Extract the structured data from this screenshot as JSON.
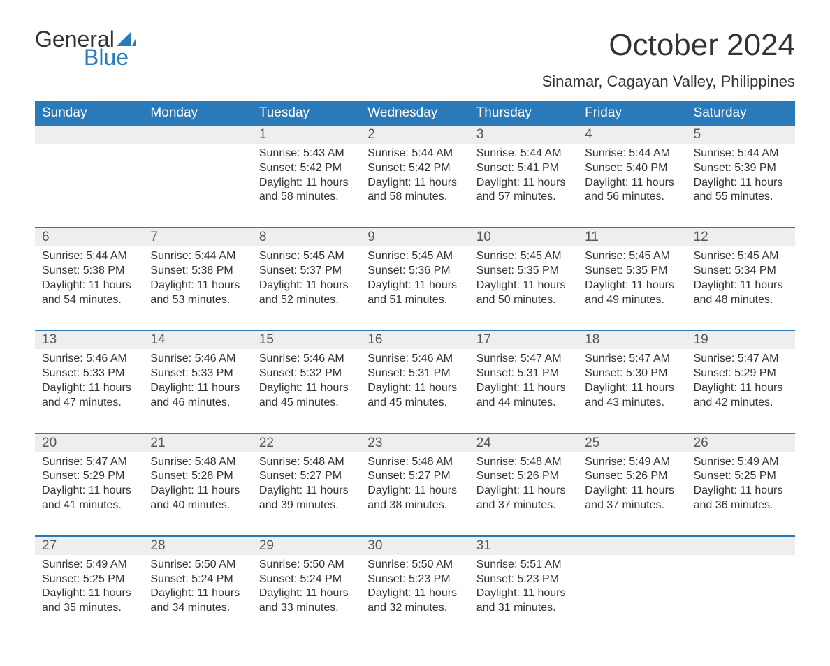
{
  "logo": {
    "word1": "General",
    "word2": "Blue",
    "accent_color": "#2a7ab9",
    "text_color": "#333333"
  },
  "title": "October 2024",
  "location": "Sinamar, Cagayan Valley, Philippines",
  "colors": {
    "header_bg": "#2a7ab9",
    "header_text": "#ffffff",
    "daynum_bg": "#eeeeee",
    "daynum_text": "#555555",
    "body_text": "#333333",
    "week_divider": "#2a7ab9",
    "page_bg": "#ffffff"
  },
  "typography": {
    "title_fontsize": 44,
    "location_fontsize": 22,
    "weekday_fontsize": 19,
    "daynum_fontsize": 19,
    "body_fontsize": 16,
    "font_family": "Arial"
  },
  "weekdays": [
    "Sunday",
    "Monday",
    "Tuesday",
    "Wednesday",
    "Thursday",
    "Friday",
    "Saturday"
  ],
  "weeks": [
    [
      null,
      null,
      {
        "n": "1",
        "sr": "Sunrise: 5:43 AM",
        "ss": "Sunset: 5:42 PM",
        "d1": "Daylight: 11 hours",
        "d2": "and 58 minutes."
      },
      {
        "n": "2",
        "sr": "Sunrise: 5:44 AM",
        "ss": "Sunset: 5:42 PM",
        "d1": "Daylight: 11 hours",
        "d2": "and 58 minutes."
      },
      {
        "n": "3",
        "sr": "Sunrise: 5:44 AM",
        "ss": "Sunset: 5:41 PM",
        "d1": "Daylight: 11 hours",
        "d2": "and 57 minutes."
      },
      {
        "n": "4",
        "sr": "Sunrise: 5:44 AM",
        "ss": "Sunset: 5:40 PM",
        "d1": "Daylight: 11 hours",
        "d2": "and 56 minutes."
      },
      {
        "n": "5",
        "sr": "Sunrise: 5:44 AM",
        "ss": "Sunset: 5:39 PM",
        "d1": "Daylight: 11 hours",
        "d2": "and 55 minutes."
      }
    ],
    [
      {
        "n": "6",
        "sr": "Sunrise: 5:44 AM",
        "ss": "Sunset: 5:38 PM",
        "d1": "Daylight: 11 hours",
        "d2": "and 54 minutes."
      },
      {
        "n": "7",
        "sr": "Sunrise: 5:44 AM",
        "ss": "Sunset: 5:38 PM",
        "d1": "Daylight: 11 hours",
        "d2": "and 53 minutes."
      },
      {
        "n": "8",
        "sr": "Sunrise: 5:45 AM",
        "ss": "Sunset: 5:37 PM",
        "d1": "Daylight: 11 hours",
        "d2": "and 52 minutes."
      },
      {
        "n": "9",
        "sr": "Sunrise: 5:45 AM",
        "ss": "Sunset: 5:36 PM",
        "d1": "Daylight: 11 hours",
        "d2": "and 51 minutes."
      },
      {
        "n": "10",
        "sr": "Sunrise: 5:45 AM",
        "ss": "Sunset: 5:35 PM",
        "d1": "Daylight: 11 hours",
        "d2": "and 50 minutes."
      },
      {
        "n": "11",
        "sr": "Sunrise: 5:45 AM",
        "ss": "Sunset: 5:35 PM",
        "d1": "Daylight: 11 hours",
        "d2": "and 49 minutes."
      },
      {
        "n": "12",
        "sr": "Sunrise: 5:45 AM",
        "ss": "Sunset: 5:34 PM",
        "d1": "Daylight: 11 hours",
        "d2": "and 48 minutes."
      }
    ],
    [
      {
        "n": "13",
        "sr": "Sunrise: 5:46 AM",
        "ss": "Sunset: 5:33 PM",
        "d1": "Daylight: 11 hours",
        "d2": "and 47 minutes."
      },
      {
        "n": "14",
        "sr": "Sunrise: 5:46 AM",
        "ss": "Sunset: 5:33 PM",
        "d1": "Daylight: 11 hours",
        "d2": "and 46 minutes."
      },
      {
        "n": "15",
        "sr": "Sunrise: 5:46 AM",
        "ss": "Sunset: 5:32 PM",
        "d1": "Daylight: 11 hours",
        "d2": "and 45 minutes."
      },
      {
        "n": "16",
        "sr": "Sunrise: 5:46 AM",
        "ss": "Sunset: 5:31 PM",
        "d1": "Daylight: 11 hours",
        "d2": "and 45 minutes."
      },
      {
        "n": "17",
        "sr": "Sunrise: 5:47 AM",
        "ss": "Sunset: 5:31 PM",
        "d1": "Daylight: 11 hours",
        "d2": "and 44 minutes."
      },
      {
        "n": "18",
        "sr": "Sunrise: 5:47 AM",
        "ss": "Sunset: 5:30 PM",
        "d1": "Daylight: 11 hours",
        "d2": "and 43 minutes."
      },
      {
        "n": "19",
        "sr": "Sunrise: 5:47 AM",
        "ss": "Sunset: 5:29 PM",
        "d1": "Daylight: 11 hours",
        "d2": "and 42 minutes."
      }
    ],
    [
      {
        "n": "20",
        "sr": "Sunrise: 5:47 AM",
        "ss": "Sunset: 5:29 PM",
        "d1": "Daylight: 11 hours",
        "d2": "and 41 minutes."
      },
      {
        "n": "21",
        "sr": "Sunrise: 5:48 AM",
        "ss": "Sunset: 5:28 PM",
        "d1": "Daylight: 11 hours",
        "d2": "and 40 minutes."
      },
      {
        "n": "22",
        "sr": "Sunrise: 5:48 AM",
        "ss": "Sunset: 5:27 PM",
        "d1": "Daylight: 11 hours",
        "d2": "and 39 minutes."
      },
      {
        "n": "23",
        "sr": "Sunrise: 5:48 AM",
        "ss": "Sunset: 5:27 PM",
        "d1": "Daylight: 11 hours",
        "d2": "and 38 minutes."
      },
      {
        "n": "24",
        "sr": "Sunrise: 5:48 AM",
        "ss": "Sunset: 5:26 PM",
        "d1": "Daylight: 11 hours",
        "d2": "and 37 minutes."
      },
      {
        "n": "25",
        "sr": "Sunrise: 5:49 AM",
        "ss": "Sunset: 5:26 PM",
        "d1": "Daylight: 11 hours",
        "d2": "and 37 minutes."
      },
      {
        "n": "26",
        "sr": "Sunrise: 5:49 AM",
        "ss": "Sunset: 5:25 PM",
        "d1": "Daylight: 11 hours",
        "d2": "and 36 minutes."
      }
    ],
    [
      {
        "n": "27",
        "sr": "Sunrise: 5:49 AM",
        "ss": "Sunset: 5:25 PM",
        "d1": "Daylight: 11 hours",
        "d2": "and 35 minutes."
      },
      {
        "n": "28",
        "sr": "Sunrise: 5:50 AM",
        "ss": "Sunset: 5:24 PM",
        "d1": "Daylight: 11 hours",
        "d2": "and 34 minutes."
      },
      {
        "n": "29",
        "sr": "Sunrise: 5:50 AM",
        "ss": "Sunset: 5:24 PM",
        "d1": "Daylight: 11 hours",
        "d2": "and 33 minutes."
      },
      {
        "n": "30",
        "sr": "Sunrise: 5:50 AM",
        "ss": "Sunset: 5:23 PM",
        "d1": "Daylight: 11 hours",
        "d2": "and 32 minutes."
      },
      {
        "n": "31",
        "sr": "Sunrise: 5:51 AM",
        "ss": "Sunset: 5:23 PM",
        "d1": "Daylight: 11 hours",
        "d2": "and 31 minutes."
      },
      null,
      null
    ]
  ]
}
